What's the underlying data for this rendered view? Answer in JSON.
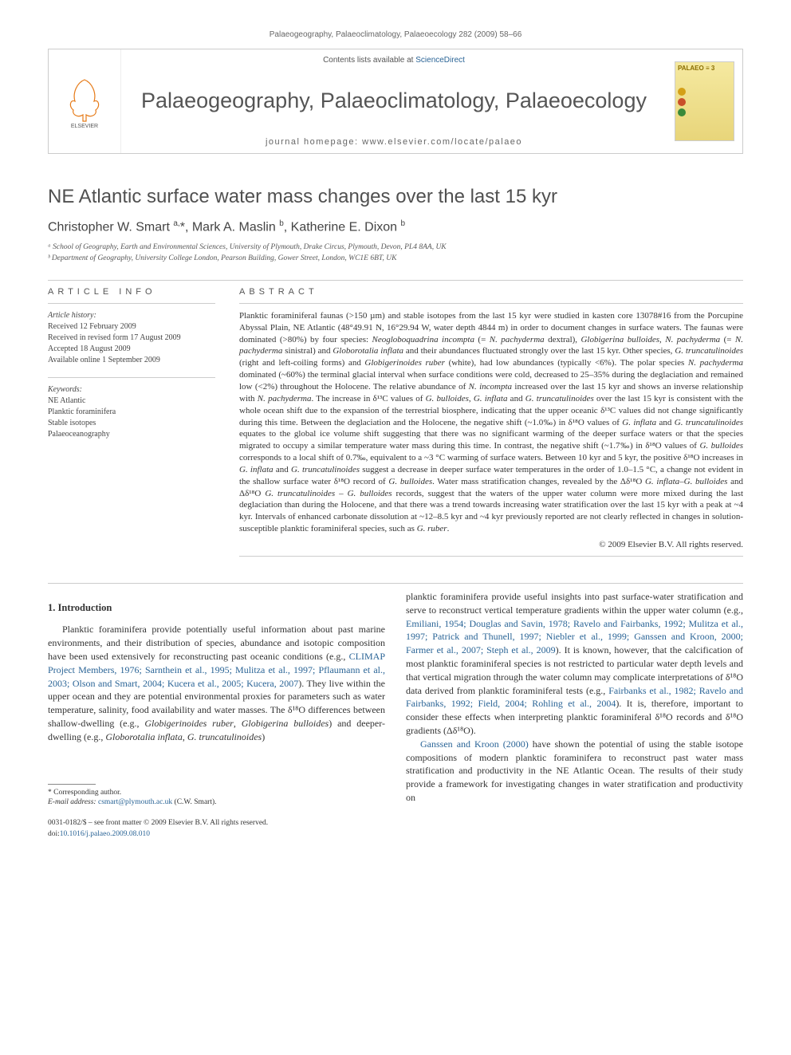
{
  "header": {
    "citation": "Palaeogeography, Palaeoclimatology, Palaeoecology 282 (2009) 58–66"
  },
  "banner": {
    "contents_prefix": "Contents lists available at ",
    "contents_link": "ScienceDirect",
    "journal_title": "Palaeogeography, Palaeoclimatology, Palaeoecology",
    "homepage_label": "journal homepage: www.elsevier.com/locate/palaeo",
    "cover_label": "PALAEO",
    "cover_badge": "3",
    "elsevier": "ELSEVIER"
  },
  "article": {
    "title": "NE Atlantic surface water mass changes over the last 15 kyr",
    "authors_html": "Christopher W. Smart <sup>a,</sup>*, Mark A. Maslin <sup>b</sup>, Katherine E. Dixon <sup>b</sup>",
    "affiliations": {
      "a": "ᵃ School of Geography, Earth and Environmental Sciences, University of Plymouth, Drake Circus, Plymouth, Devon, PL4 8AA, UK",
      "b": "ᵇ Department of Geography, University College London, Pearson Building, Gower Street, London, WC1E 6BT, UK"
    }
  },
  "info": {
    "heading": "ARTICLE INFO",
    "history_label": "Article history:",
    "history": {
      "received": "Received 12 February 2009",
      "revised": "Received in revised form 17 August 2009",
      "accepted": "Accepted 18 August 2009",
      "online": "Available online 1 September 2009"
    },
    "keywords_label": "Keywords:",
    "keywords": [
      "NE Atlantic",
      "Planktic foraminifera",
      "Stable isotopes",
      "Palaeoceanography"
    ]
  },
  "abstract": {
    "heading": "ABSTRACT",
    "text": "Planktic foraminiferal faunas (>150 µm) and stable isotopes from the last 15 kyr were studied in kasten core 13078#16 from the Porcupine Abyssal Plain, NE Atlantic (48°49.91 N, 16°29.94 W, water depth 4844 m) in order to document changes in surface waters. The faunas were dominated (>80%) by four species: <i>Neogloboquadrina incompta</i> (= <i>N. pachyderma</i> dextral), <i>Globigerina bulloides</i>, <i>N. pachyderma</i> (= <i>N. pachyderma</i> sinistral) and <i>Globorotalia inflata</i> and their abundances fluctuated strongly over the last 15 kyr. Other species, <i>G. truncatulinoides</i> (right and left-coiling forms) and <i>Globigerinoides ruber</i> (white), had low abundances (typically <6%). The polar species <i>N. pachyderma</i> dominated (~60%) the terminal glacial interval when surface conditions were cold, decreased to 25–35% during the deglaciation and remained low (<2%) throughout the Holocene. The relative abundance of <i>N. incompta</i> increased over the last 15 kyr and shows an inverse relationship with <i>N. pachyderma</i>. The increase in δ¹³C values of <i>G. bulloides</i>, <i>G. inflata</i> and <i>G. truncatulinoides</i> over the last 15 kyr is consistent with the whole ocean shift due to the expansion of the terrestrial biosphere, indicating that the upper oceanic δ¹³C values did not change significantly during this time. Between the deglaciation and the Holocene, the negative shift (~1.0‰) in δ¹⁸O values of <i>G. inflata</i> and <i>G. truncatulinoides</i> equates to the global ice volume shift suggesting that there was no significant warming of the deeper surface waters or that the species migrated to occupy a similar temperature water mass during this time. In contrast, the negative shift (~1.7‰) in δ¹⁸O values of <i>G. bulloides</i> corresponds to a local shift of 0.7‰, equivalent to a ~3 °C warming of surface waters. Between 10 kyr and 5 kyr, the positive δ¹⁸O increases in <i>G. inflata</i> and <i>G. truncatulinoides</i> suggest a decrease in deeper surface water temperatures in the order of 1.0–1.5 °C, a change not evident in the shallow surface water δ¹⁸O record of <i>G. bulloides</i>. Water mass stratification changes, revealed by the Δδ¹⁸O <i>G. inflata–G. bulloides</i> and Δδ¹⁸O <i>G. truncatulinoides – G. bulloides</i> records, suggest that the waters of the upper water column were more mixed during the last deglaciation than during the Holocene, and that there was a trend towards increasing water stratification over the last 15 kyr with a peak at ~4 kyr. Intervals of enhanced carbonate dissolution at ~12–8.5 kyr and ~4 kyr previously reported are not clearly reflected in changes in solution-susceptible planktic foraminiferal species, such as <i>G. ruber</i>.",
    "copyright": "© 2009 Elsevier B.V. All rights reserved."
  },
  "body": {
    "section_number": "1.",
    "section_title": "Introduction",
    "col1": "Planktic foraminifera provide potentially useful information about past marine environments, and their distribution of species, abundance and isotopic composition have been used extensively for reconstructing past oceanic conditions (e.g., <span class='link'>CLIMAP Project Members, 1976; Sarnthein et al., 1995; Mulitza et al., 1997; Pflaumann et al., 2003; Olson and Smart, 2004; Kucera et al., 2005; Kucera, 2007</span>). They live within the upper ocean and they are potential environmental proxies for parameters such as water temperature, salinity, food availability and water masses. The δ¹⁸O differences between shallow-dwelling (e.g., <span class='ital'>Globigerinoides ruber</span>, <span class='ital'>Globigerina bulloides</span>) and deeper-dwelling (e.g., <span class='ital'>Globorotalia inflata</span>, <span class='ital'>G. truncatulinoides</span>)",
    "col2_p1": "planktic foraminifera provide useful insights into past surface-water stratification and serve to reconstruct vertical temperature gradients within the upper water column (e.g., <span class='link'>Emiliani, 1954; Douglas and Savin, 1978; Ravelo and Fairbanks, 1992; Mulitza et al., 1997; Patrick and Thunell, 1997; Niebler et al., 1999; Ganssen and Kroon, 2000; Farmer et al., 2007; Steph et al., 2009</span>). It is known, however, that the calcification of most planktic foraminiferal species is not restricted to particular water depth levels and that vertical migration through the water column may complicate interpretations of δ¹⁸O data derived from planktic foraminiferal tests (e.g., <span class='link'>Fairbanks et al., 1982; Ravelo and Fairbanks, 1992; Field, 2004; Rohling et al., 2004</span>). It is, therefore, important to consider these effects when interpreting planktic foraminiferal δ¹⁸O records and δ¹⁸O gradients (Δδ¹⁸O).",
    "col2_p2": "<span class='link'>Ganssen and Kroon (2000)</span> have shown the potential of using the stable isotope compositions of modern planktic foraminifera to reconstruct past water mass stratification and productivity in the NE Atlantic Ocean. The results of their study provide a framework for investigating changes in water stratification and productivity on"
  },
  "footer": {
    "corr_label": "* Corresponding author.",
    "email_label": "E-mail address:",
    "email": "csmart@plymouth.ac.uk",
    "email_name": "(C.W. Smart).",
    "front_matter": "0031-0182/$ – see front matter © 2009 Elsevier B.V. All rights reserved.",
    "doi_label": "doi:",
    "doi": "10.1016/j.palaeo.2009.08.010"
  },
  "colors": {
    "link": "#2a6496",
    "text": "#333333",
    "muted": "#666666",
    "border": "#cccccc"
  }
}
